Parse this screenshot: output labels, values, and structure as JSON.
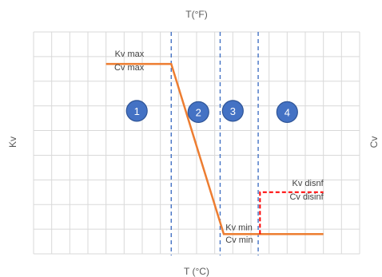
{
  "chart_data": {
    "type": "line",
    "xlabel_bottom": "T (°C)",
    "xlabel_top": "T(°F)",
    "ylabel_left": "Kv",
    "ylabel_right": "Cv",
    "grid": true,
    "x_divisions": 18,
    "y_divisions": 9,
    "xlim": [
      0,
      18
    ],
    "ylim": [
      0,
      9
    ],
    "series": [
      {
        "color": "#ED7D31",
        "style": "solid",
        "points": [
          [
            4,
            7.7
          ],
          [
            7.6,
            7.7
          ],
          [
            10.5,
            0.8
          ],
          [
            16,
            0.8
          ]
        ]
      },
      {
        "color": "#FF0000",
        "style": "dashed",
        "points": [
          [
            12.5,
            0.8
          ],
          [
            12.5,
            2.5
          ],
          [
            16,
            2.5
          ]
        ]
      }
    ],
    "vertical_lines": [
      {
        "x": 7.6,
        "color": "#4472C4"
      },
      {
        "x": 10.3,
        "color": "#4472C4"
      },
      {
        "x": 12.4,
        "color": "#4472C4"
      }
    ],
    "annotations": [
      {
        "text": "Kv max",
        "x": 6.1,
        "y": 8.0,
        "anchor": "end"
      },
      {
        "text": "Cv max",
        "x": 6.1,
        "y": 7.45,
        "anchor": "end"
      },
      {
        "text": "Kv min",
        "x": 10.6,
        "y": 0.95,
        "anchor": "start"
      },
      {
        "text": "Cv min",
        "x": 10.6,
        "y": 0.45,
        "anchor": "start"
      },
      {
        "text": "Kv disnf",
        "x": 16,
        "y": 2.75,
        "anchor": "end"
      },
      {
        "text": "Cv disinf",
        "x": 16,
        "y": 2.2,
        "anchor": "end"
      }
    ],
    "zones": [
      {
        "label": "1",
        "x": 5.7,
        "y": 5.8
      },
      {
        "label": "2",
        "x": 9.1,
        "y": 5.75
      },
      {
        "label": "3",
        "x": 11.0,
        "y": 5.8
      },
      {
        "label": "4",
        "x": 14.0,
        "y": 5.75
      }
    ],
    "colors": {
      "grid": "#d9d9d9",
      "zone_fill": "#4472C4",
      "zone_stroke": "#2F5597"
    }
  }
}
